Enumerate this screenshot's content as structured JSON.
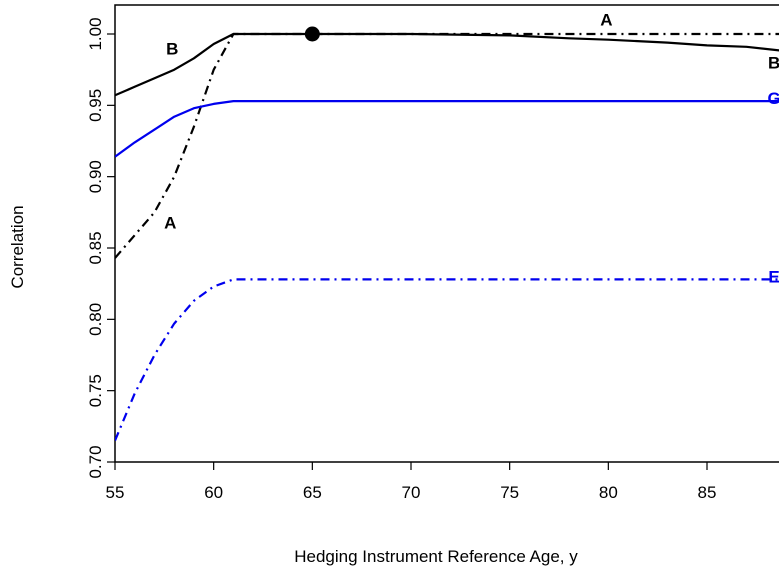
{
  "chart_data": {
    "type": "line",
    "xlabel": "Hedging Instrument Reference Age, y",
    "ylabel": "Correlation",
    "xlim": [
      55,
      89
    ],
    "ylim": [
      0.7,
      1.02
    ],
    "xticks": [
      "55",
      "60",
      "65",
      "70",
      "75",
      "80",
      "85"
    ],
    "yticks": [
      "0.70",
      "0.75",
      "0.80",
      "0.85",
      "0.90",
      "0.95",
      "1.00"
    ],
    "grid": false,
    "legend": "none",
    "series": [
      {
        "name": "A",
        "color": "#000000",
        "style": "dashdot",
        "x": [
          55,
          57,
          58,
          59,
          60,
          61,
          65,
          70,
          75,
          80,
          85,
          89
        ],
        "y": [
          0.843,
          0.875,
          0.9,
          0.935,
          0.975,
          1.0,
          1.0,
          1.0,
          1.0,
          1.0,
          1.0,
          1.0
        ]
      },
      {
        "name": "B",
        "color": "#000000",
        "style": "solid",
        "x": [
          55,
          56,
          57,
          58,
          59,
          60,
          61,
          65,
          70,
          75,
          78,
          80,
          83,
          85,
          87,
          89
        ],
        "y": [
          0.957,
          0.963,
          0.969,
          0.975,
          0.983,
          0.993,
          1.0,
          1.0,
          1.0,
          0.999,
          0.997,
          0.996,
          0.994,
          0.992,
          0.991,
          0.988
        ]
      },
      {
        "name": "G",
        "color": "#0000ee",
        "style": "solid",
        "x": [
          55,
          56,
          57,
          58,
          59,
          60,
          61,
          65,
          70,
          75,
          80,
          85,
          89
        ],
        "y": [
          0.914,
          0.924,
          0.933,
          0.942,
          0.948,
          0.951,
          0.953,
          0.953,
          0.953,
          0.953,
          0.953,
          0.953,
          0.953
        ]
      },
      {
        "name": "E",
        "color": "#0000ee",
        "style": "dashdot",
        "x": [
          55,
          56,
          57,
          58,
          59,
          60,
          61,
          65,
          70,
          75,
          80,
          85,
          89
        ],
        "y": [
          0.715,
          0.748,
          0.775,
          0.797,
          0.813,
          0.823,
          0.828,
          0.828,
          0.828,
          0.828,
          0.828,
          0.828,
          0.828
        ]
      }
    ],
    "markers": [
      {
        "x": 65,
        "y": 1.0,
        "color": "#000000"
      }
    ],
    "annotations": [
      {
        "text": "A",
        "x": 79.9,
        "y": 1.01,
        "color": "#000000"
      },
      {
        "text": "B",
        "x": 57.9,
        "y": 0.99,
        "color": "#000000"
      },
      {
        "text": "B",
        "x": 88.4,
        "y": 0.98,
        "color": "#000000"
      },
      {
        "text": "G",
        "x": 88.4,
        "y": 0.955,
        "color": "#0000ee"
      },
      {
        "text": "A",
        "x": 57.8,
        "y": 0.868,
        "color": "#000000"
      },
      {
        "text": "E",
        "x": 88.4,
        "y": 0.83,
        "color": "#0000ee"
      }
    ]
  }
}
